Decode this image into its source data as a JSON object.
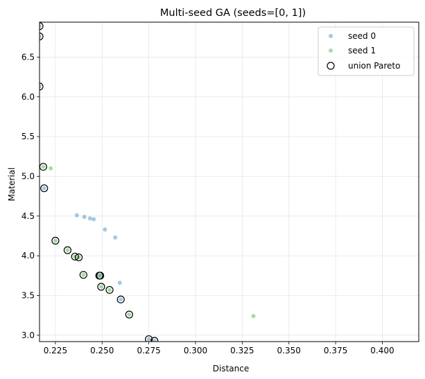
{
  "chart_data": {
    "type": "scatter",
    "title": "Multi-seed GA (seeds=[0, 1])",
    "xlabel": "Distance",
    "ylabel": "Material",
    "xlim": [
      0.2165,
      0.4195
    ],
    "ylim": [
      2.92,
      6.94
    ],
    "xticks": [
      0.225,
      0.25,
      0.275,
      0.3,
      0.325,
      0.35,
      0.375,
      0.4
    ],
    "xtick_labels": [
      "0.225",
      "0.250",
      "0.275",
      "0.300",
      "0.325",
      "0.350",
      "0.375",
      "0.400"
    ],
    "yticks": [
      3.0,
      3.5,
      4.0,
      4.5,
      5.0,
      5.5,
      6.0,
      6.5
    ],
    "ytick_labels": [
      "3.0",
      "3.5",
      "4.0",
      "4.5",
      "5.0",
      "5.5",
      "6.0",
      "6.5"
    ],
    "grid": true,
    "legend_position": "top-right",
    "series": [
      {
        "name": "seed 0",
        "color": "#1f77b4",
        "points": [
          [
            0.2165,
            6.89
          ],
          [
            0.2165,
            6.76
          ],
          [
            0.2165,
            6.13
          ],
          [
            0.219,
            4.85
          ],
          [
            0.2365,
            4.51
          ],
          [
            0.2405,
            4.49
          ],
          [
            0.2435,
            4.47
          ],
          [
            0.2455,
            4.46
          ],
          [
            0.2515,
            4.33
          ],
          [
            0.257,
            4.23
          ],
          [
            0.2595,
            3.66
          ],
          [
            0.26,
            3.45
          ],
          [
            0.2485,
            3.75
          ],
          [
            0.275,
            2.95
          ],
          [
            0.278,
            2.93
          ]
        ]
      },
      {
        "name": "seed 1",
        "color": "#2ca02c",
        "points": [
          [
            0.2185,
            5.12
          ],
          [
            0.2225,
            5.1
          ],
          [
            0.225,
            4.19
          ],
          [
            0.2315,
            4.07
          ],
          [
            0.2355,
            3.99
          ],
          [
            0.2375,
            3.98
          ],
          [
            0.24,
            3.76
          ],
          [
            0.249,
            3.75
          ],
          [
            0.2495,
            3.61
          ],
          [
            0.254,
            3.57
          ],
          [
            0.2645,
            3.26
          ],
          [
            0.331,
            3.24
          ]
        ]
      },
      {
        "name": "union Pareto",
        "marker": "hollow-circle",
        "points": [
          [
            0.2165,
            6.89
          ],
          [
            0.2165,
            6.76
          ],
          [
            0.2165,
            6.13
          ],
          [
            0.2185,
            5.12
          ],
          [
            0.219,
            4.85
          ],
          [
            0.225,
            4.19
          ],
          [
            0.2315,
            4.07
          ],
          [
            0.2355,
            3.99
          ],
          [
            0.2375,
            3.98
          ],
          [
            0.24,
            3.76
          ],
          [
            0.2485,
            3.75
          ],
          [
            0.249,
            3.75
          ],
          [
            0.2495,
            3.61
          ],
          [
            0.254,
            3.57
          ],
          [
            0.26,
            3.45
          ],
          [
            0.2645,
            3.26
          ],
          [
            0.275,
            2.95
          ],
          [
            0.278,
            2.93
          ]
        ]
      }
    ]
  }
}
